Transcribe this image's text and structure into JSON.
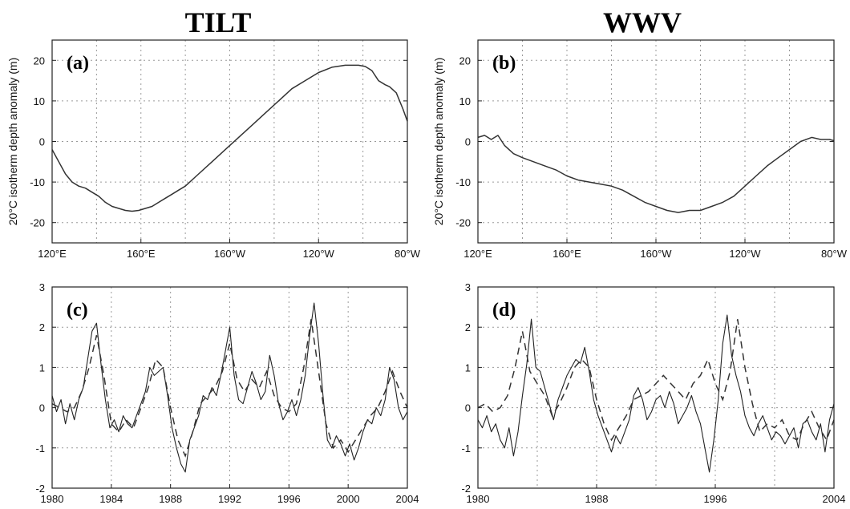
{
  "figure": {
    "column_titles": [
      "TILT",
      "WWV"
    ],
    "ylabel_top": "20°C isotherm depth anomaly (m)"
  },
  "chart_data": [
    {
      "id": "a",
      "panel_label": "(a)",
      "type": "line",
      "title": "TILT",
      "xlabel": "",
      "ylabel": "20°C isotherm depth anomaly (m)",
      "xlim": [
        120,
        280
      ],
      "ylim": [
        -25,
        25
      ],
      "grid": true,
      "x_ticks": [
        {
          "v": 120,
          "label": "120°E"
        },
        {
          "v": 160,
          "label": "160°E"
        },
        {
          "v": 200,
          "label": "160°W"
        },
        {
          "v": 240,
          "label": "120°W"
        },
        {
          "v": 280,
          "label": "80°W"
        }
      ],
      "x_grid": [
        140,
        160,
        180,
        200,
        220,
        240,
        260
      ],
      "y_ticks": [
        -20,
        -10,
        0,
        10,
        20
      ],
      "y_grid": [
        -20,
        -10,
        0,
        10,
        20
      ],
      "series": [
        {
          "style": "solid",
          "x": [
            120,
            123,
            126,
            129,
            132,
            135,
            138,
            141,
            144,
            147,
            150,
            153,
            156,
            159,
            162,
            165,
            168,
            171,
            174,
            177,
            180,
            186,
            192,
            198,
            204,
            210,
            216,
            222,
            228,
            234,
            240,
            246,
            252,
            258,
            261,
            264,
            267,
            270,
            272,
            275,
            278,
            280
          ],
          "y": [
            -2,
            -5,
            -8,
            -10,
            -11,
            -11.5,
            -12.5,
            -13.5,
            -15,
            -16,
            -16.5,
            -17,
            -17.2,
            -17,
            -16.5,
            -16,
            -15,
            -14,
            -13,
            -12,
            -11,
            -8,
            -5,
            -2,
            1,
            4,
            7,
            10,
            13,
            15,
            17,
            18.3,
            18.8,
            18.8,
            18.5,
            17.5,
            15,
            14,
            13.5,
            12,
            8,
            5
          ]
        }
      ]
    },
    {
      "id": "b",
      "panel_label": "(b)",
      "type": "line",
      "title": "WWV",
      "xlabel": "",
      "ylabel": "20°C isotherm depth anomaly (m)",
      "xlim": [
        120,
        280
      ],
      "ylim": [
        -25,
        25
      ],
      "grid": true,
      "x_ticks": [
        {
          "v": 120,
          "label": "120°E"
        },
        {
          "v": 160,
          "label": "160°E"
        },
        {
          "v": 200,
          "label": "160°W"
        },
        {
          "v": 240,
          "label": "120°W"
        },
        {
          "v": 280,
          "label": "80°W"
        }
      ],
      "x_grid": [
        140,
        160,
        180,
        200,
        220,
        240,
        260
      ],
      "y_ticks": [
        -20,
        -10,
        0,
        10,
        20
      ],
      "y_grid": [
        -20,
        -10,
        0,
        10,
        20
      ],
      "series": [
        {
          "style": "solid",
          "x": [
            120,
            123,
            126,
            129,
            132,
            136,
            140,
            145,
            150,
            155,
            160,
            165,
            170,
            175,
            180,
            185,
            190,
            195,
            200,
            205,
            210,
            215,
            220,
            225,
            230,
            235,
            240,
            245,
            250,
            255,
            260,
            265,
            270,
            274,
            278,
            280
          ],
          "y": [
            1,
            1.5,
            0.5,
            1.5,
            -1,
            -3,
            -4,
            -5,
            -6,
            -7,
            -8.5,
            -9.5,
            -10,
            -10.5,
            -11,
            -12,
            -13.5,
            -15,
            -16,
            -17,
            -17.5,
            -17,
            -17,
            -16,
            -15,
            -13.5,
            -11,
            -8.5,
            -6,
            -4,
            -2,
            0,
            1,
            0.5,
            0.5,
            0.2
          ]
        }
      ]
    },
    {
      "id": "c",
      "panel_label": "(c)",
      "type": "line",
      "xlabel": "",
      "ylabel": "",
      "xlim": [
        1980,
        2004
      ],
      "ylim": [
        -2,
        3
      ],
      "grid": true,
      "x_ticks": [
        {
          "v": 1980,
          "label": "1980"
        },
        {
          "v": 1984,
          "label": "1984"
        },
        {
          "v": 1988,
          "label": "1988"
        },
        {
          "v": 1992,
          "label": "1992"
        },
        {
          "v": 1996,
          "label": "1996"
        },
        {
          "v": 2000,
          "label": "2000"
        },
        {
          "v": 2004,
          "label": "2004"
        }
      ],
      "x_grid": [
        1984,
        1988,
        1992,
        1996,
        2000
      ],
      "y_ticks": [
        -2,
        -1,
        0,
        1,
        2,
        3
      ],
      "y_grid": [
        -1,
        0,
        1,
        2
      ],
      "series": [
        {
          "style": "solid",
          "x": [
            1980,
            1980.3,
            1980.6,
            1980.9,
            1981.2,
            1981.5,
            1981.8,
            1982.1,
            1982.4,
            1982.7,
            1983,
            1983.3,
            1983.6,
            1983.9,
            1984.2,
            1984.5,
            1984.8,
            1985.1,
            1985.4,
            1985.7,
            1986,
            1986.3,
            1986.6,
            1986.9,
            1987.2,
            1987.5,
            1987.8,
            1988.1,
            1988.4,
            1988.7,
            1989,
            1989.3,
            1989.6,
            1989.9,
            1990.2,
            1990.5,
            1990.8,
            1991.1,
            1991.4,
            1991.7,
            1992,
            1992.3,
            1992.6,
            1992.9,
            1993.2,
            1993.5,
            1993.8,
            1994.1,
            1994.4,
            1994.7,
            1995,
            1995.3,
            1995.6,
            1995.9,
            1996.2,
            1996.5,
            1996.8,
            1997.1,
            1997.4,
            1997.7,
            1998,
            1998.3,
            1998.6,
            1998.9,
            1999.2,
            1999.5,
            1999.8,
            2000.1,
            2000.4,
            2000.7,
            2001,
            2001.3,
            2001.6,
            2001.9,
            2002.2,
            2002.5,
            2002.8,
            2003.1,
            2003.4,
            2003.7,
            2004
          ],
          "y": [
            0.3,
            -0.1,
            0.2,
            -0.4,
            0.1,
            -0.3,
            0.2,
            0.5,
            1.2,
            1.9,
            2.1,
            1.1,
            0.2,
            -0.5,
            -0.3,
            -0.6,
            -0.2,
            -0.4,
            -0.5,
            -0.2,
            0.1,
            0.4,
            1.0,
            0.8,
            0.9,
            1.0,
            0.3,
            -0.5,
            -1.0,
            -1.4,
            -1.6,
            -0.8,
            -0.5,
            -0.2,
            0.3,
            0.2,
            0.5,
            0.3,
            0.8,
            1.4,
            2.0,
            0.8,
            0.2,
            0.1,
            0.5,
            0.9,
            0.6,
            0.2,
            0.4,
            1.3,
            0.8,
            0.1,
            -0.3,
            -0.1,
            0.2,
            -0.2,
            0.2,
            0.8,
            1.8,
            2.6,
            1.6,
            0.3,
            -0.8,
            -1.0,
            -0.7,
            -0.9,
            -1.2,
            -0.9,
            -1.3,
            -1.0,
            -0.6,
            -0.3,
            -0.4,
            0.0,
            -0.2,
            0.2,
            1.0,
            0.7,
            0.0,
            -0.3,
            -0.1
          ]
        },
        {
          "style": "dashed",
          "x": [
            1980,
            1980.5,
            1981,
            1981.5,
            1982,
            1982.5,
            1983,
            1983.5,
            1984,
            1984.5,
            1985,
            1985.5,
            1986,
            1986.5,
            1987,
            1987.5,
            1988,
            1988.5,
            1989,
            1989.5,
            1990,
            1990.5,
            1991,
            1991.5,
            1992,
            1992.5,
            1993,
            1993.5,
            1994,
            1994.5,
            1995,
            1995.5,
            1996,
            1996.5,
            1997,
            1997.5,
            1998,
            1998.5,
            1999,
            1999.5,
            2000,
            2000.5,
            2001,
            2001.5,
            2002,
            2002.5,
            2003,
            2003.5,
            2004
          ],
          "y": [
            0.1,
            0.0,
            -0.1,
            0.0,
            0.4,
            1.0,
            1.8,
            0.8,
            -0.4,
            -0.6,
            -0.3,
            -0.5,
            0.0,
            0.5,
            1.2,
            1.0,
            0.0,
            -0.8,
            -1.2,
            -0.6,
            0.1,
            0.3,
            0.5,
            0.9,
            1.6,
            0.7,
            0.4,
            0.7,
            0.5,
            0.9,
            0.3,
            0.0,
            -0.1,
            0.1,
            1.0,
            2.2,
            0.9,
            -0.4,
            -1.0,
            -0.8,
            -1.1,
            -0.8,
            -0.5,
            -0.2,
            0.0,
            0.4,
            0.9,
            0.4,
            0.0
          ]
        }
      ]
    },
    {
      "id": "d",
      "panel_label": "(d)",
      "type": "line",
      "xlabel": "",
      "ylabel": "",
      "xlim": [
        1980,
        2004
      ],
      "ylim": [
        -2,
        3
      ],
      "grid": true,
      "x_ticks": [
        {
          "v": 1980,
          "label": "1980"
        },
        {
          "v": 1988,
          "label": "1988"
        },
        {
          "v": 1996,
          "label": "1996"
        },
        {
          "v": 2004,
          "label": "2004"
        }
      ],
      "x_grid": [
        1984,
        1988,
        1992,
        1996,
        2000
      ],
      "y_ticks": [
        -2,
        -1,
        0,
        1,
        2,
        3
      ],
      "y_grid": [
        -1,
        0,
        1,
        2
      ],
      "series": [
        {
          "style": "solid",
          "x": [
            1980,
            1980.3,
            1980.6,
            1980.9,
            1981.2,
            1981.5,
            1981.8,
            1982.1,
            1982.4,
            1982.7,
            1983,
            1983.3,
            1983.6,
            1983.9,
            1984.2,
            1984.5,
            1984.8,
            1985.1,
            1985.4,
            1985.7,
            1986,
            1986.3,
            1986.6,
            1986.9,
            1987.2,
            1987.5,
            1987.8,
            1988.1,
            1988.4,
            1988.7,
            1989,
            1989.3,
            1989.6,
            1989.9,
            1990.2,
            1990.5,
            1990.8,
            1991.1,
            1991.4,
            1991.7,
            1992,
            1992.3,
            1992.6,
            1992.9,
            1993.2,
            1993.5,
            1993.8,
            1994.1,
            1994.4,
            1994.7,
            1995,
            1995.3,
            1995.6,
            1995.9,
            1996.2,
            1996.5,
            1996.8,
            1997.1,
            1997.4,
            1997.7,
            1998,
            1998.3,
            1998.6,
            1998.9,
            1999.2,
            1999.5,
            1999.8,
            2000.1,
            2000.4,
            2000.7,
            2001,
            2001.3,
            2001.6,
            2001.9,
            2002.2,
            2002.5,
            2002.8,
            2003.1,
            2003.4,
            2003.7,
            2004
          ],
          "y": [
            -0.3,
            -0.5,
            -0.2,
            -0.6,
            -0.4,
            -0.8,
            -1.0,
            -0.5,
            -1.2,
            -0.6,
            0.3,
            1.1,
            2.2,
            1.0,
            0.9,
            0.5,
            0.1,
            -0.3,
            0.2,
            0.5,
            0.8,
            1.0,
            1.2,
            1.1,
            1.5,
            0.9,
            0.2,
            -0.2,
            -0.5,
            -0.8,
            -1.1,
            -0.7,
            -0.9,
            -0.6,
            -0.3,
            0.3,
            0.5,
            0.2,
            -0.3,
            -0.1,
            0.2,
            0.3,
            0.0,
            0.4,
            0.1,
            -0.4,
            -0.2,
            0.0,
            0.3,
            -0.1,
            -0.4,
            -1.0,
            -1.6,
            -0.8,
            0.2,
            1.6,
            2.3,
            1.3,
            0.8,
            0.4,
            -0.2,
            -0.5,
            -0.7,
            -0.4,
            -0.2,
            -0.5,
            -0.8,
            -0.6,
            -0.7,
            -0.9,
            -0.7,
            -0.5,
            -1.0,
            -0.4,
            -0.3,
            -0.6,
            -0.8,
            -0.4,
            -1.1,
            -0.3,
            0.1
          ]
        },
        {
          "style": "dashed",
          "x": [
            1980,
            1980.5,
            1981,
            1981.5,
            1982,
            1982.5,
            1983,
            1983.5,
            1984,
            1984.5,
            1985,
            1985.5,
            1986,
            1986.5,
            1987,
            1987.5,
            1988,
            1988.5,
            1989,
            1989.5,
            1990,
            1990.5,
            1991,
            1991.5,
            1992,
            1992.5,
            1993,
            1993.5,
            1994,
            1994.5,
            1995,
            1995.5,
            1996,
            1996.5,
            1997,
            1997.5,
            1998,
            1998.5,
            1999,
            1999.5,
            2000,
            2000.5,
            2001,
            2001.5,
            2002,
            2002.5,
            2003,
            2003.5,
            2004
          ],
          "y": [
            0.0,
            0.1,
            -0.1,
            0.0,
            0.3,
            1.0,
            1.9,
            0.9,
            0.6,
            0.3,
            -0.2,
            0.1,
            0.5,
            1.0,
            1.2,
            1.0,
            0.2,
            -0.4,
            -0.8,
            -0.5,
            -0.2,
            0.2,
            0.3,
            0.4,
            0.6,
            0.8,
            0.6,
            0.4,
            0.2,
            0.6,
            0.8,
            1.2,
            0.6,
            0.2,
            0.9,
            2.2,
            1.0,
            0.1,
            -0.6,
            -0.4,
            -0.5,
            -0.3,
            -0.7,
            -0.8,
            -0.4,
            -0.1,
            -0.5,
            -0.8,
            -0.3
          ]
        }
      ]
    }
  ]
}
